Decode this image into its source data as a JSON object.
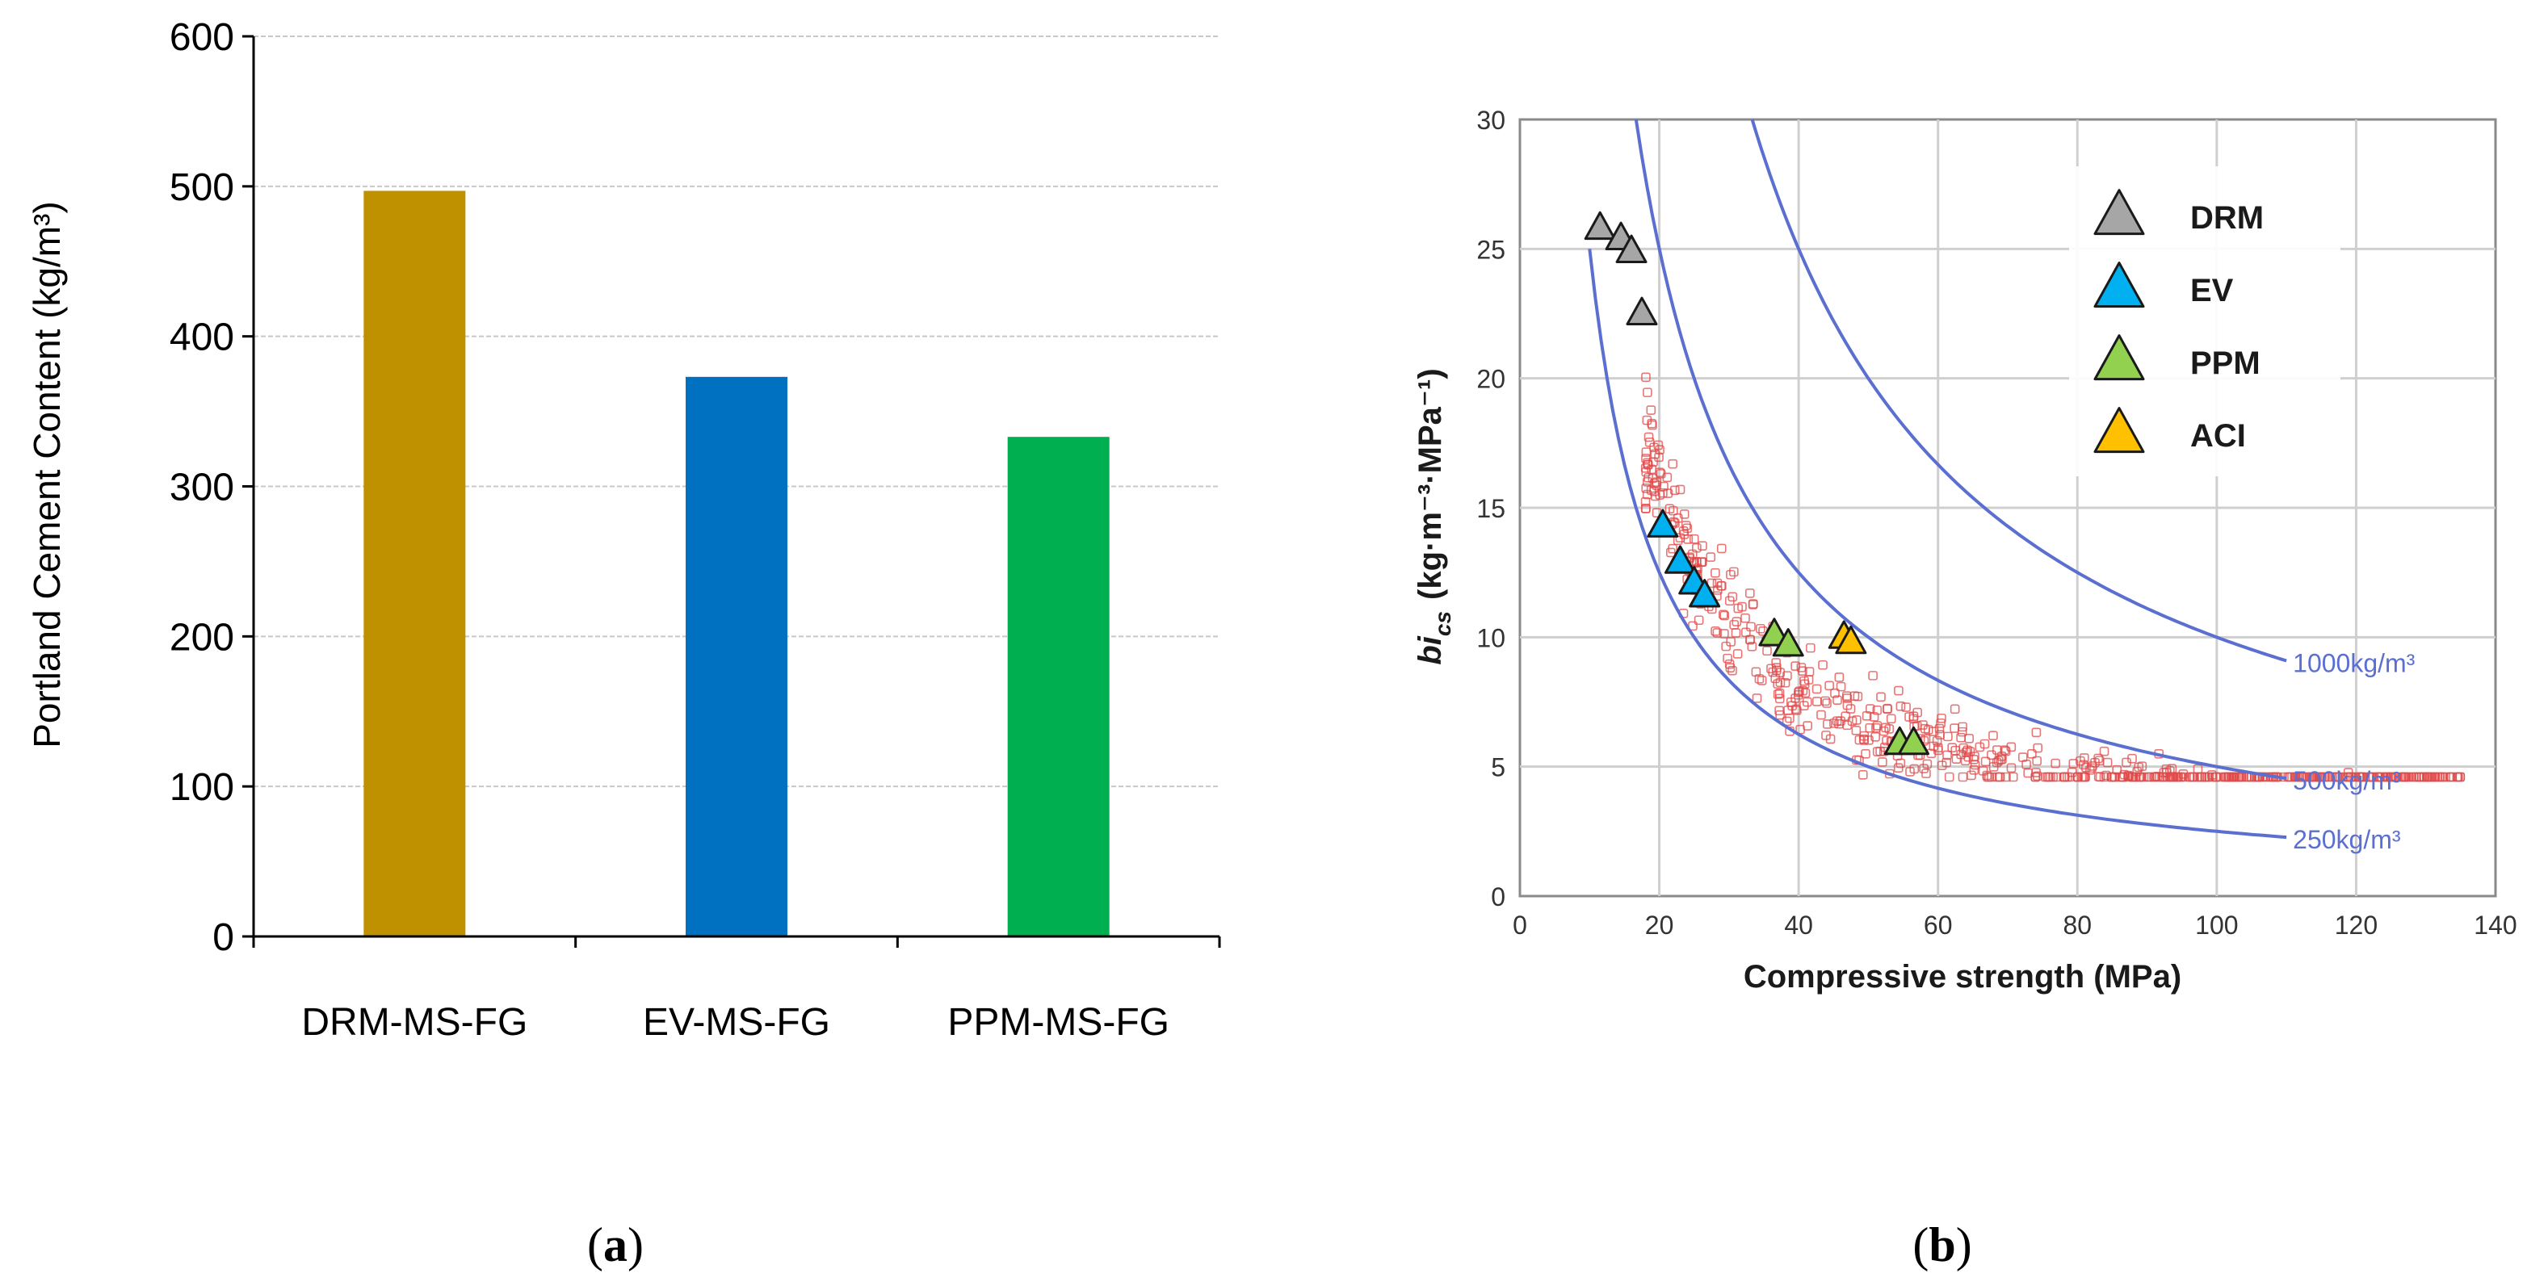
{
  "chart_data": [
    {
      "id": "a",
      "panel_label": "a",
      "type": "bar",
      "title": "",
      "xlabel": "",
      "ylabel": "Portland Cement Content (kg/m³)",
      "ylim": [
        0,
        600
      ],
      "yticks": [
        0,
        100,
        200,
        300,
        400,
        500,
        600
      ],
      "grid": true,
      "categories": [
        "DRM-MS-FG",
        "EV-MS-FG",
        "PPM-MS-FG"
      ],
      "values": [
        497,
        373,
        333
      ],
      "colors": [
        "#BF9000",
        "#0070C0",
        "#00B050"
      ]
    },
    {
      "id": "b",
      "panel_label": "b",
      "type": "scatter",
      "xlabel": "Compressive strength (MPa)",
      "ylabel_main": "bi",
      "ylabel_sub": "cs",
      "ylabel_units": "(kg·m⁻³·MPa⁻¹)",
      "xlim": [
        0,
        140
      ],
      "ylim": [
        0,
        30
      ],
      "xticks": [
        0,
        20,
        40,
        60,
        80,
        100,
        120,
        140
      ],
      "yticks": [
        0,
        5,
        10,
        15,
        20,
        25,
        30
      ],
      "grid": true,
      "legend_position": "top-right",
      "series": [
        {
          "name": "DRM",
          "color": "#A6A6A6",
          "points": [
            [
              11.5,
              25.8
            ],
            [
              14.5,
              25.4
            ],
            [
              16,
              24.9
            ],
            [
              17.5,
              22.5
            ]
          ]
        },
        {
          "name": "EV",
          "color": "#00B0F0",
          "points": [
            [
              20.5,
              14.3
            ],
            [
              23,
              12.9
            ],
            [
              25,
              12.1
            ],
            [
              26.5,
              11.6
            ]
          ]
        },
        {
          "name": "PPM",
          "color": "#92D050",
          "points": [
            [
              36.5,
              10.1
            ],
            [
              38.5,
              9.7
            ],
            [
              54.5,
              5.9
            ],
            [
              56.5,
              5.9
            ]
          ]
        },
        {
          "name": "ACI",
          "color": "#FFC000",
          "points": [
            [
              46.5,
              10.0
            ],
            [
              47.5,
              9.8
            ]
          ]
        }
      ],
      "curves": [
        {
          "label": "1000kg/m³",
          "k": 1000,
          "xmax": 110
        },
        {
          "label": "500kg/m³",
          "k": 500,
          "xmax": 110
        },
        {
          "label": "250kg/m³",
          "k": 250,
          "xmax": 110
        }
      ],
      "cloud": {
        "color": "#E04848",
        "count": 650,
        "description": "data points from literature"
      }
    }
  ]
}
